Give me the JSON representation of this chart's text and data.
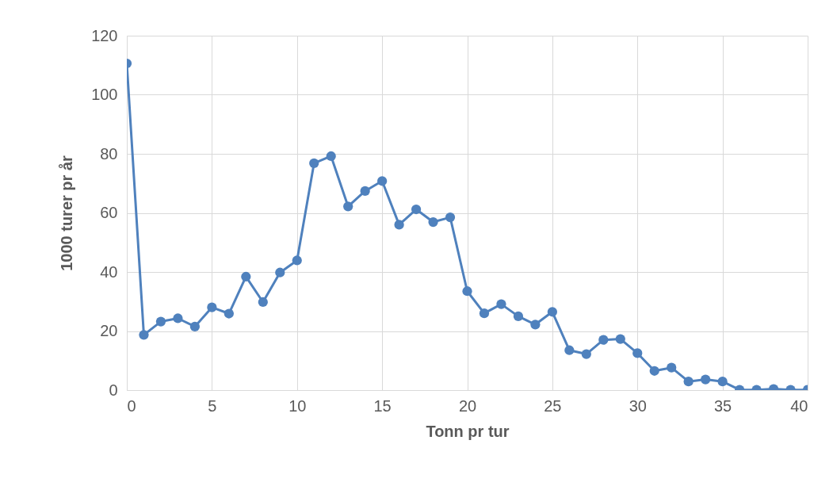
{
  "chart_data": {
    "type": "line",
    "xlabel": "Tonn pr tur",
    "ylabel": "1000 turer pr år",
    "x": [
      0,
      1,
      2,
      3,
      4,
      5,
      6,
      7,
      8,
      9,
      10,
      11,
      12,
      13,
      14,
      15,
      16,
      17,
      18,
      19,
      20,
      21,
      22,
      23,
      24,
      25,
      26,
      27,
      28,
      29,
      30,
      31,
      32,
      33,
      34,
      35,
      36,
      37,
      38,
      39,
      40
    ],
    "series": [
      {
        "color": "#4f81bd",
        "values": [
          110.6,
          18.7,
          23.2,
          24.3,
          21.5,
          28.0,
          25.9,
          38.4,
          29.8,
          39.8,
          43.9,
          76.8,
          79.2,
          62.2,
          67.4,
          70.8,
          56.0,
          61.2,
          56.9,
          58.5,
          33.5,
          26.0,
          29.1,
          25.0,
          22.2,
          26.5,
          13.5,
          12.2,
          17.0,
          17.3,
          12.5,
          6.5,
          7.6,
          2.9,
          3.6,
          2.9,
          0.1,
          0.1,
          0.4,
          0.1,
          0.1
        ]
      }
    ],
    "xlim": [
      0,
      40
    ],
    "xticks": [
      0,
      5,
      10,
      15,
      20,
      25,
      30,
      35,
      40
    ],
    "ylim": [
      0,
      120
    ],
    "yticks": [
      0,
      20,
      40,
      60,
      80,
      100,
      120
    ],
    "grid": true,
    "marker": "circle",
    "line_style": "solid"
  }
}
